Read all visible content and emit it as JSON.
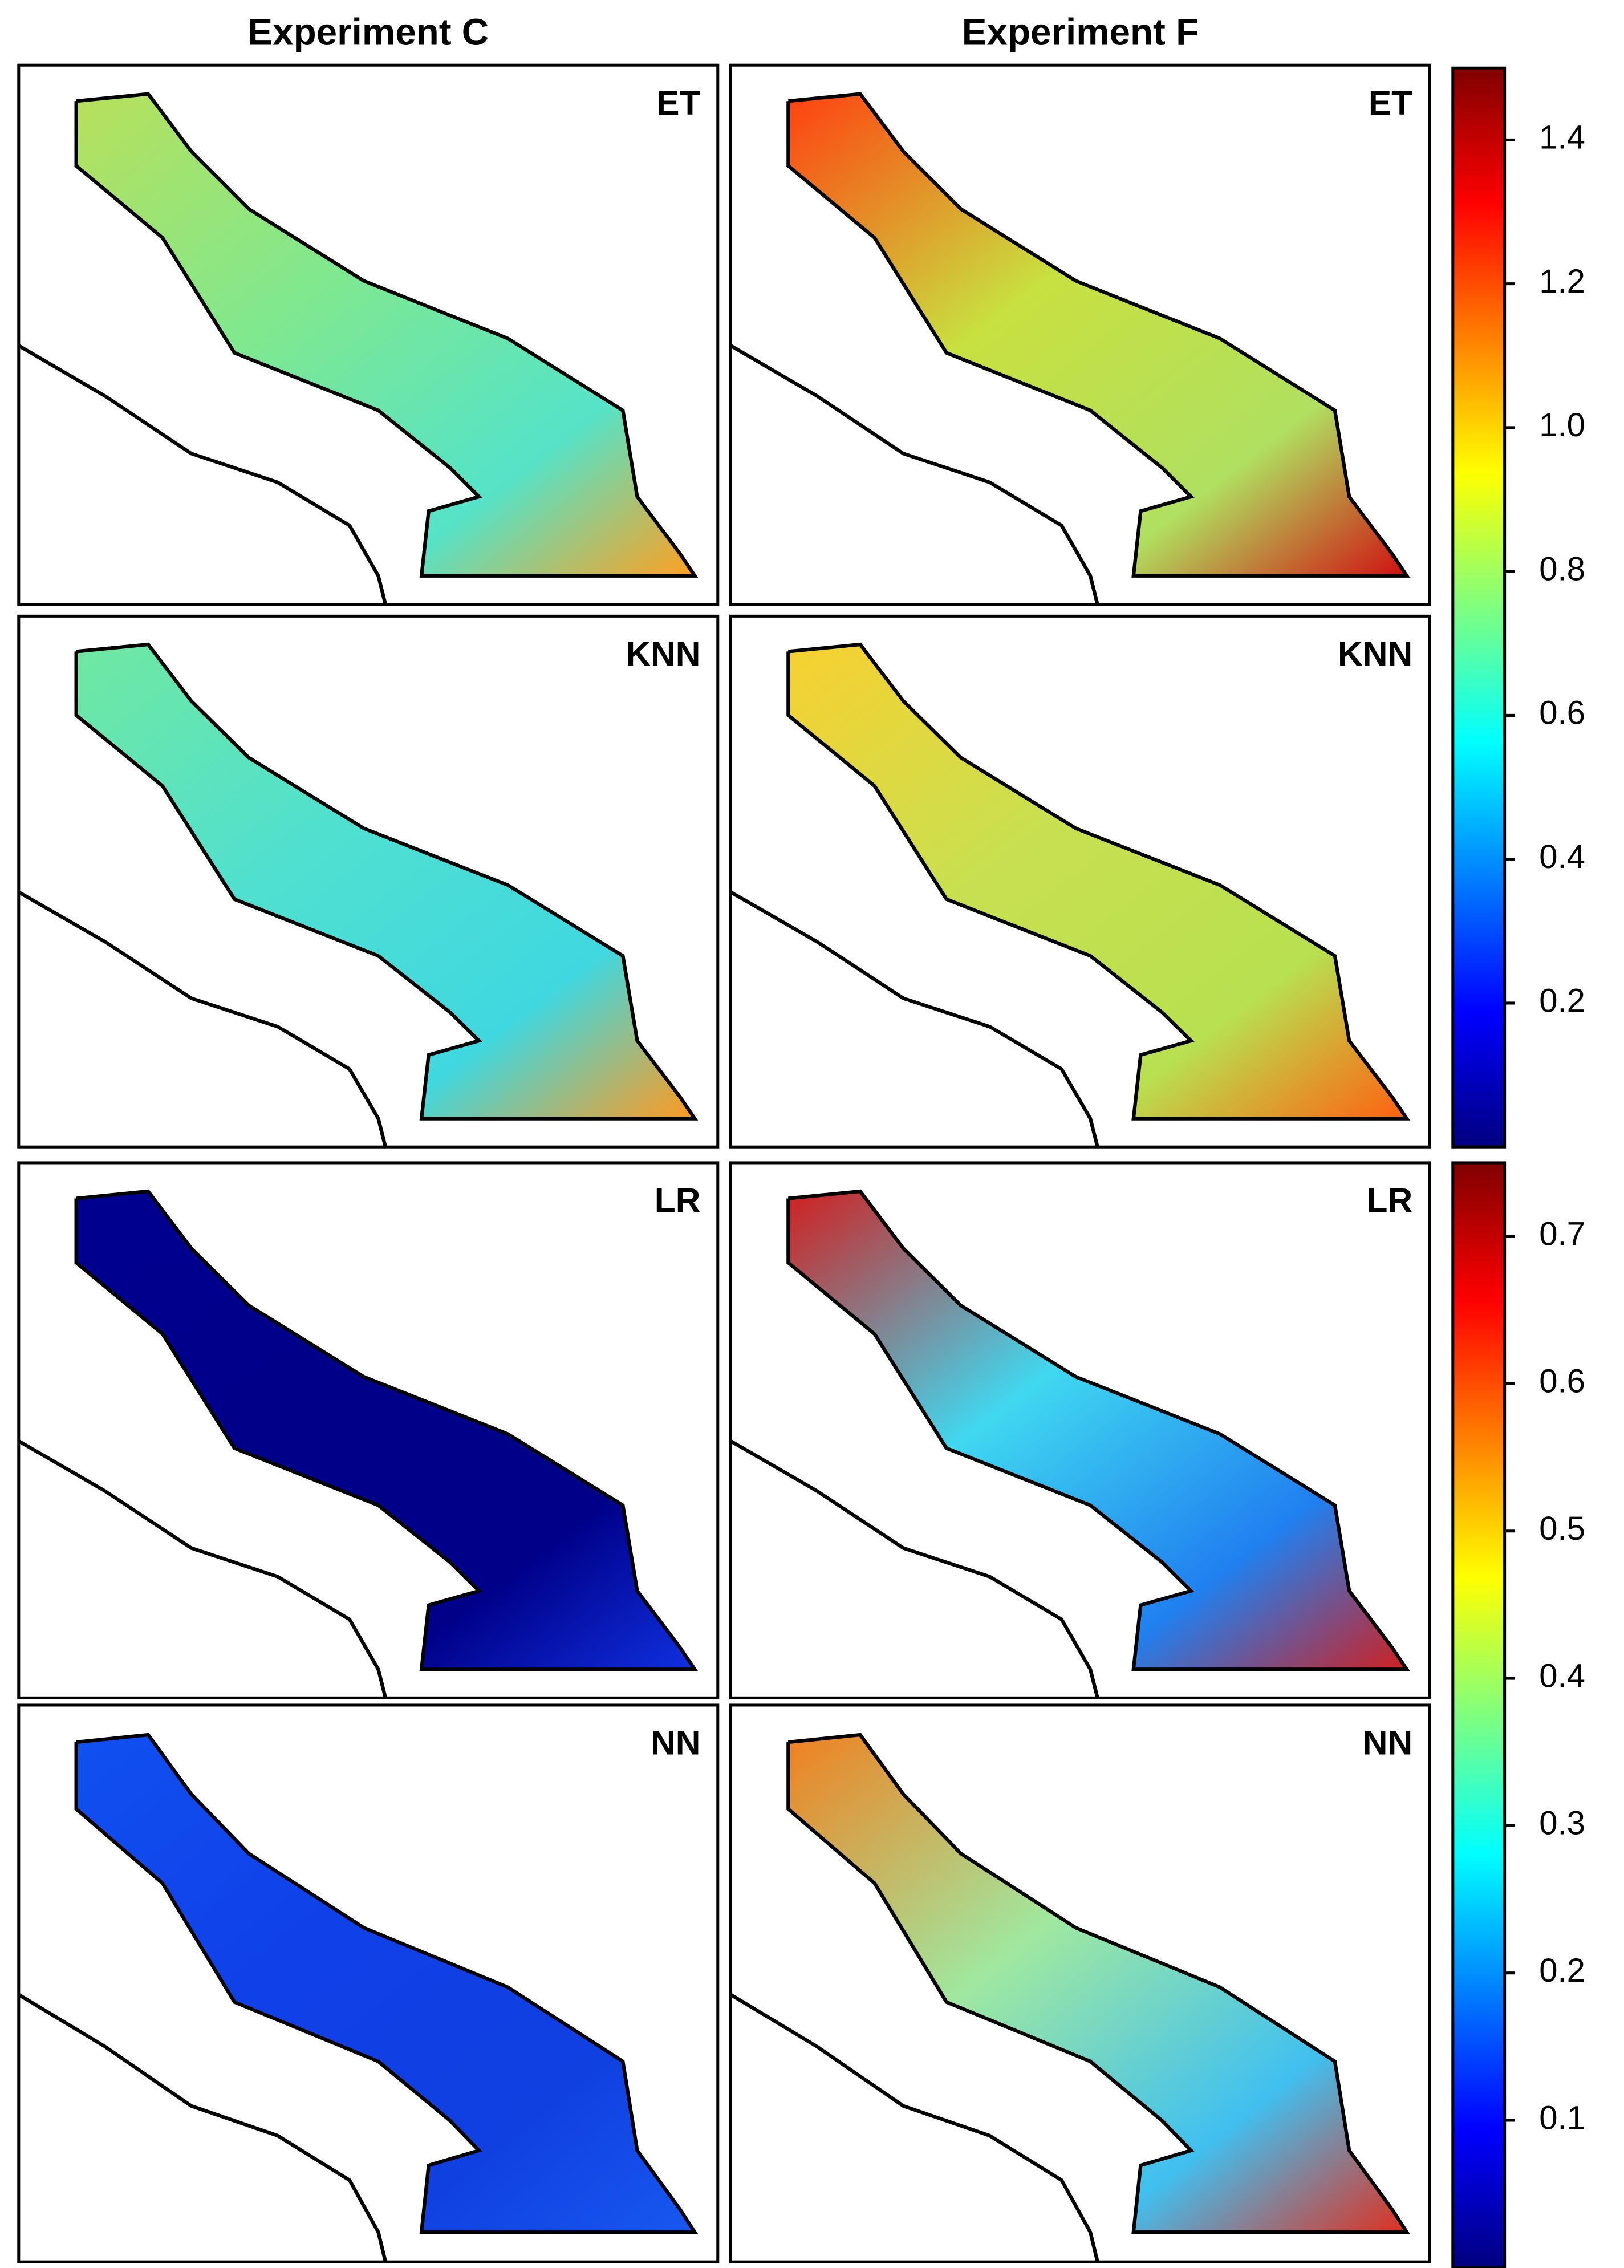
{
  "columns": [
    {
      "title": "Experiment C"
    },
    {
      "title": "Experiment F"
    }
  ],
  "rows": [
    "ET",
    "KNN",
    "LR",
    "NN"
  ],
  "colorbars": [
    {
      "lim": [
        0,
        1.5
      ],
      "ticks": [
        0.2,
        0.4,
        0.6,
        0.8,
        {
          "value": 1,
          "label": "1.0"
        },
        1.2,
        1.4
      ]
    },
    {
      "lim": [
        0,
        0.75
      ],
      "ticks": [
        0.1,
        0.2,
        0.3,
        0.4,
        0.5,
        0.6,
        0.7
      ]
    }
  ]
}
